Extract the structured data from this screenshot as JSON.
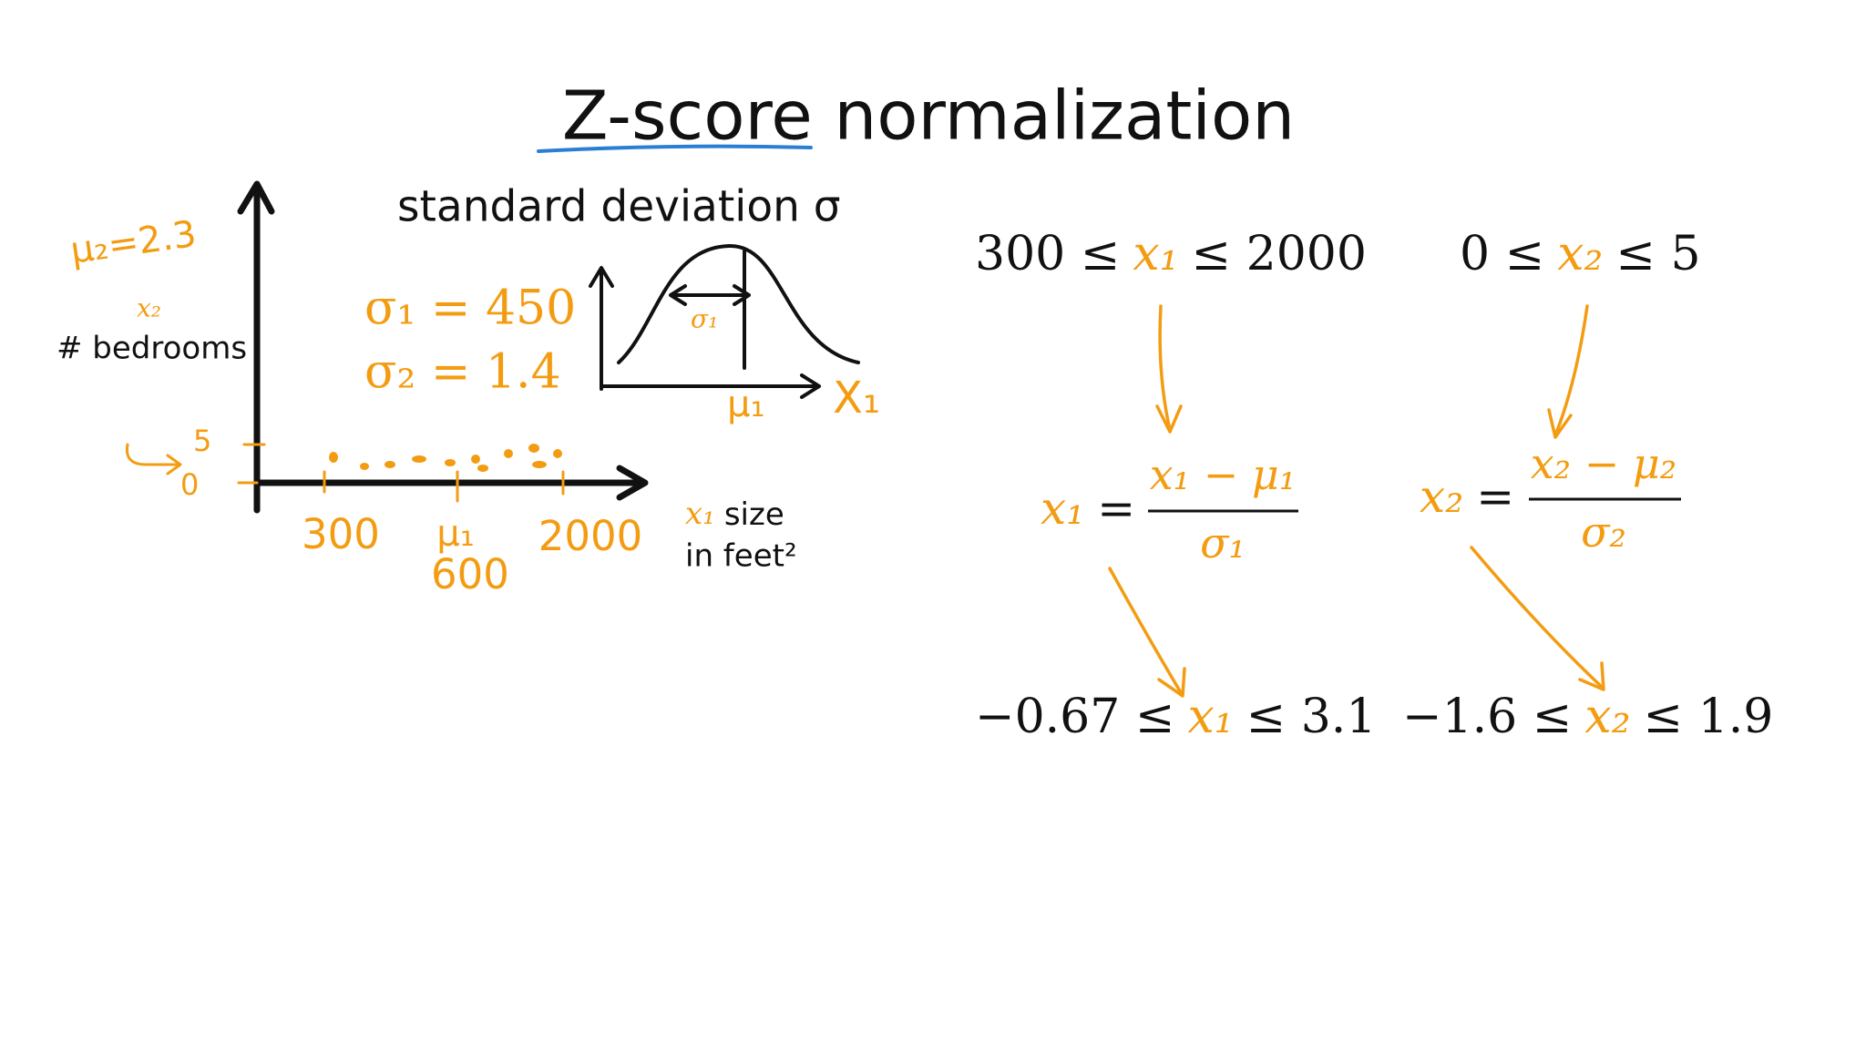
{
  "title": "Z-score normalization",
  "sketch": {
    "std_label": "standard deviation σ",
    "mu2": "μ₂=2.3",
    "y_var": "x₂",
    "y_name": "# bedrooms",
    "sigma1": "σ₁ = 450",
    "sigma2": "σ₂ = 1.4",
    "curve_sigma": "σ₁",
    "curve_mu": "μ₁",
    "curve_x": "X₁",
    "y_ticks": [
      "5",
      "0"
    ],
    "x_ticks": [
      "300",
      "μ₁",
      "600",
      "2000"
    ],
    "x_var": "x₁",
    "x_name_1": "size",
    "x_name_2": "in feet²"
  },
  "ranges_before": [
    {
      "lower": "300 ≤",
      "var": "x₁",
      "upper": "≤ 2000"
    },
    {
      "lower": "0 ≤",
      "var": "x₂",
      "upper": "≤ 5"
    }
  ],
  "formulas": [
    {
      "lhs": "x₁",
      "eq": "=",
      "numerator": "x₁ − μ₁",
      "denominator": "σ₁"
    },
    {
      "lhs": "x₂",
      "eq": "=",
      "numerator": "x₂ − μ₂",
      "denominator": "σ₂"
    }
  ],
  "ranges_after": [
    {
      "lower": "−0.67 ≤",
      "var": "x₁",
      "upper": "≤ 3.1"
    },
    {
      "lower": "−1.6 ≤",
      "var": "x₂",
      "upper": "≤ 1.9"
    }
  ]
}
